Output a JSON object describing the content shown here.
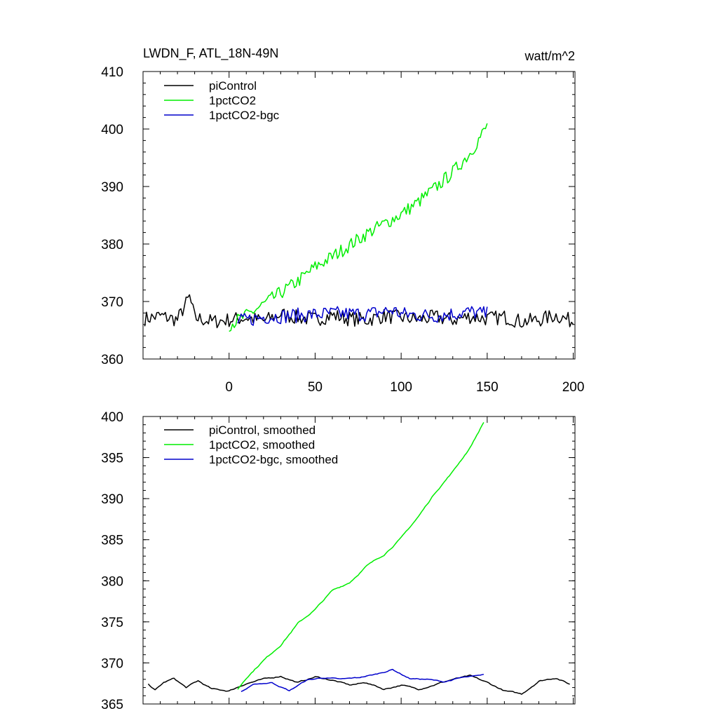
{
  "colors": {
    "black": "#000000",
    "green": "#00ee00",
    "blue": "#0000cc"
  },
  "chart_data": [
    {
      "type": "line",
      "title": "LWDN_F, ATL_18N-49N",
      "units": "watt/m^2",
      "xlim": [
        -50,
        201
      ],
      "ylim": [
        360,
        410
      ],
      "x_ticks": [
        0,
        50,
        100,
        150,
        200
      ],
      "x_tick_labels": [
        "0",
        "50",
        "100",
        "150",
        "200"
      ],
      "y_ticks": [
        360,
        370,
        380,
        390,
        400,
        410
      ],
      "y_tick_labels": [
        "360",
        "370",
        "380",
        "390",
        "400",
        "410"
      ],
      "legend": [
        "piControl",
        "1pctCO2",
        "1pctCO2-bgc"
      ],
      "series": [
        {
          "name": "piControl",
          "color": "#000000",
          "x": [
            -49,
            -40,
            -30,
            -23,
            -20,
            -10,
            0,
            10,
            20,
            30,
            40,
            50,
            60,
            70,
            80,
            90,
            100,
            110,
            120,
            130,
            140,
            150,
            160,
            170,
            180,
            190,
            200
          ],
          "y": [
            367,
            367.5,
            366.8,
            370.8,
            367.2,
            366.5,
            366.8,
            367.2,
            366.6,
            367.8,
            367.2,
            366.9,
            367.6,
            367.0,
            366.8,
            367.5,
            367.2,
            366.9,
            367.3,
            366.8,
            367.4,
            367.0,
            367.3,
            366.5,
            366.8,
            367.6,
            366.5
          ],
          "noise": 1.3
        },
        {
          "name": "1pctCO2",
          "color": "#00ee00",
          "x": [
            0,
            10,
            20,
            30,
            40,
            50,
            60,
            70,
            80,
            90,
            100,
            110,
            120,
            130,
            140,
            150
          ],
          "y": [
            366,
            367.5,
            369.5,
            371.5,
            373.5,
            376,
            377.8,
            379.8,
            381.8,
            383.5,
            385.2,
            387.3,
            389.8,
            392.5,
            395.8,
            400.5
          ],
          "noise": 1.2
        },
        {
          "name": "1pctCO2-bgc",
          "color": "#0000cc",
          "x": [
            5,
            20,
            40,
            60,
            80,
            95,
            100,
            120,
            140,
            150
          ],
          "y": [
            366.5,
            367.3,
            367.6,
            367.9,
            367.8,
            368.5,
            367.8,
            367.5,
            368.2,
            367.8
          ],
          "noise": 1.3
        }
      ]
    },
    {
      "type": "line",
      "xlim": [
        -50,
        201
      ],
      "ylim": [
        365,
        400
      ],
      "x_ticks": [
        0,
        50,
        100,
        150,
        200
      ],
      "y_ticks": [
        365,
        370,
        375,
        380,
        385,
        390,
        395,
        400
      ],
      "y_tick_labels": [
        "365",
        "370",
        "375",
        "380",
        "385",
        "390",
        "395",
        "400"
      ],
      "legend": [
        "piControl, smoothed",
        "1pctCO2, smoothed",
        "1pctCO2-bgc, smoothed"
      ],
      "series": [
        {
          "name": "piControl, smoothed",
          "color": "#000000",
          "x": [
            -47,
            -43,
            -38,
            -32,
            -25,
            -18,
            -10,
            0,
            10,
            20,
            30,
            40,
            50,
            60,
            70,
            80,
            90,
            100,
            110,
            120,
            130,
            140,
            150,
            160,
            170,
            180,
            190,
            198
          ],
          "y": [
            367.5,
            366.7,
            367.6,
            368.1,
            367.0,
            367.8,
            366.8,
            366.6,
            367.5,
            368.0,
            368.4,
            367.6,
            368.3,
            367.9,
            367.3,
            367.6,
            366.8,
            367.3,
            366.8,
            367.4,
            368.0,
            368.4,
            367.6,
            366.6,
            366.2,
            367.8,
            368.2,
            367.4
          ],
          "noise": 0.25
        },
        {
          "name": "1pctCO2, smoothed",
          "color": "#00ee00",
          "x": [
            5,
            10,
            20,
            30,
            40,
            50,
            60,
            70,
            80,
            90,
            100,
            110,
            120,
            130,
            140,
            148
          ],
          "y": [
            366.8,
            368.2,
            370.3,
            372.2,
            374.8,
            376.5,
            378.8,
            379.8,
            381.8,
            383.2,
            385.2,
            387.8,
            390.8,
            393.3,
            396.2,
            399.3
          ],
          "noise": 0.25
        },
        {
          "name": "1pctCO2-bgc, smoothed",
          "color": "#0000cc",
          "x": [
            7,
            15,
            25,
            35,
            45,
            55,
            65,
            75,
            85,
            95,
            105,
            115,
            125,
            135,
            145,
            148
          ],
          "y": [
            366.5,
            367.4,
            367.6,
            366.6,
            367.9,
            368.2,
            368.0,
            368.2,
            368.6,
            369.2,
            368.1,
            368.0,
            367.7,
            368.2,
            368.4,
            368.6
          ],
          "noise": 0.2
        }
      ]
    }
  ]
}
